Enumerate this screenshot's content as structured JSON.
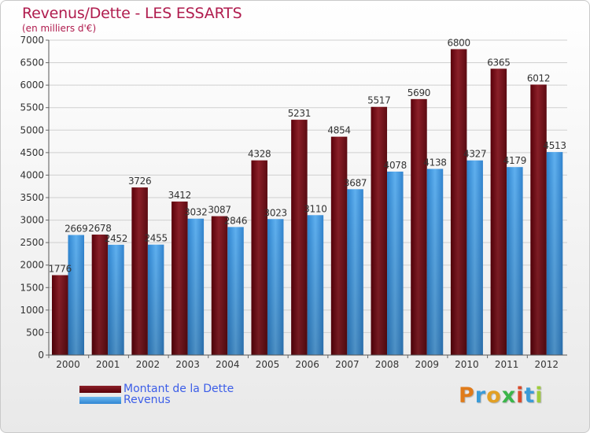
{
  "title": "Revenus/Dette - LES ESSARTS",
  "subtitle": "(en milliers d'€)",
  "legend": {
    "dette": "Montant de la Dette",
    "revenus": "Revenus"
  },
  "logo": {
    "letters": [
      "P",
      "r",
      "o",
      "x",
      "i",
      "t",
      "i"
    ],
    "colors": [
      "#e07b1a",
      "#3a9bd8",
      "#e2a024",
      "#3bb54a",
      "#d94a2b",
      "#3a9bd8",
      "#9fcc3b"
    ]
  },
  "colors": {
    "dette": "#7a0c14",
    "revenus": "#3f97e0",
    "title": "#b01c4e",
    "legend_text": "#3c5ee8"
  },
  "chart_data": {
    "type": "bar",
    "title": "Revenus/Dette - LES ESSARTS",
    "subtitle": "(en milliers d'€)",
    "categories": [
      "2000",
      "2001",
      "2002",
      "2003",
      "2004",
      "2005",
      "2006",
      "2007",
      "2008",
      "2009",
      "2010",
      "2011",
      "2012"
    ],
    "series": [
      {
        "name": "Montant de la Dette",
        "values": [
          1776,
          2678,
          3726,
          3412,
          3087,
          4328,
          5231,
          4854,
          5517,
          5690,
          6800,
          6365,
          6012
        ]
      },
      {
        "name": "Revenus",
        "values": [
          2669,
          2452,
          2455,
          3032,
          2846,
          3023,
          3110,
          3687,
          4078,
          4138,
          4327,
          4179,
          4513
        ]
      }
    ],
    "ylim": [
      0,
      7000
    ],
    "yticks": [
      0,
      500,
      1000,
      1500,
      2000,
      2500,
      3000,
      3500,
      4000,
      4500,
      5000,
      5500,
      6000,
      6500,
      7000
    ],
    "grid": true,
    "legend": "bottom-left"
  }
}
